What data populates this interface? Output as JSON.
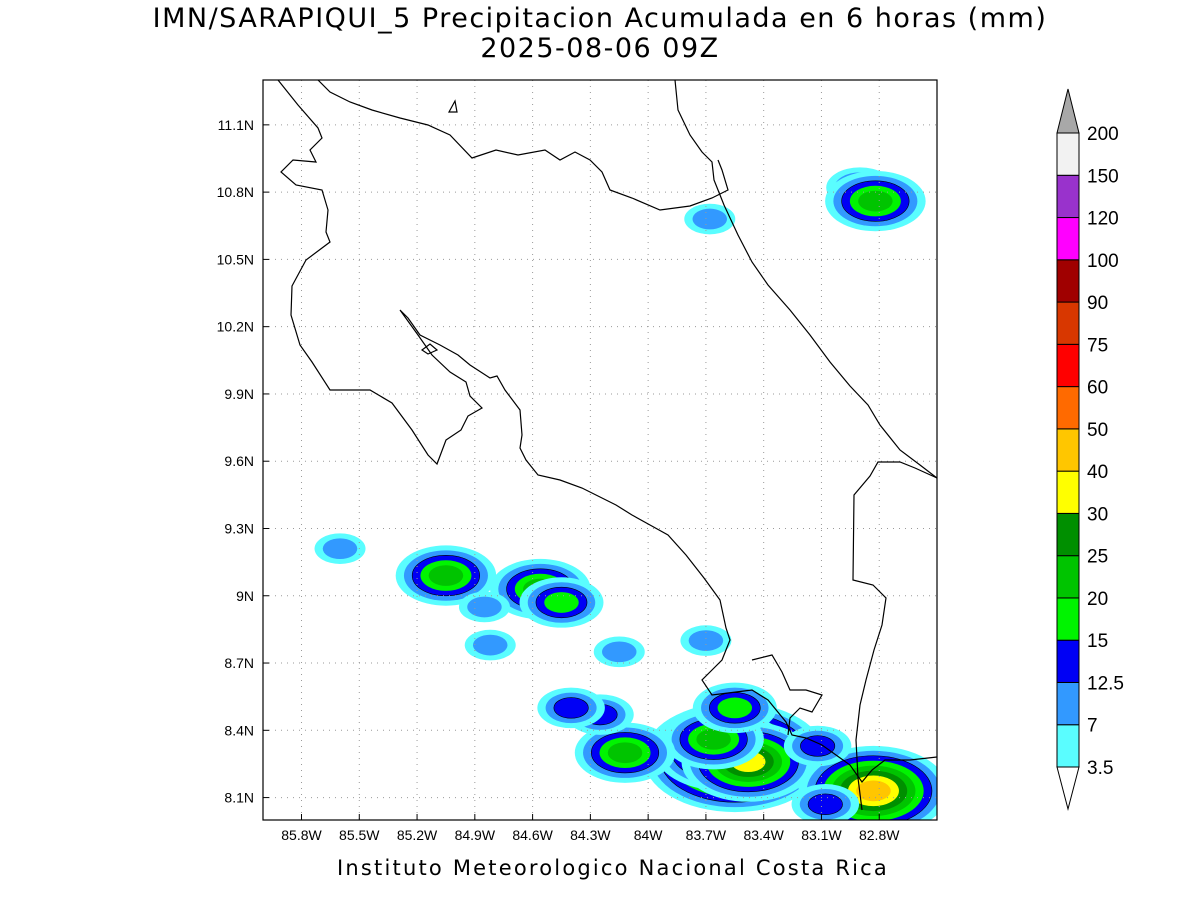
{
  "header": {
    "title_line1": "IMN/SARAPIQUI_5 Precipitacion Acumulada en 6 horas (mm)",
    "title_line2": "2025-08-06 09Z"
  },
  "footer": {
    "credit": "Instituto Meteorologico Nacional Costa Rica"
  },
  "map": {
    "lon_range": [
      -86.0,
      -82.5
    ],
    "lat_range": [
      8.0,
      11.3
    ],
    "lon_ticks": [
      {
        "value": -85.8,
        "label": "85.8W"
      },
      {
        "value": -85.5,
        "label": "85.5W"
      },
      {
        "value": -85.2,
        "label": "85.2W"
      },
      {
        "value": -84.9,
        "label": "84.9W"
      },
      {
        "value": -84.6,
        "label": "84.6W"
      },
      {
        "value": -84.3,
        "label": "84.3W"
      },
      {
        "value": -84.0,
        "label": "84W"
      },
      {
        "value": -83.7,
        "label": "83.7W"
      },
      {
        "value": -83.4,
        "label": "83.4W"
      },
      {
        "value": -83.1,
        "label": "83.1W"
      },
      {
        "value": -82.8,
        "label": "82.8W"
      }
    ],
    "lat_ticks": [
      {
        "value": 8.1,
        "label": "8.1N"
      },
      {
        "value": 8.4,
        "label": "8.4N"
      },
      {
        "value": 8.7,
        "label": "8.7N"
      },
      {
        "value": 9.0,
        "label": "9N"
      },
      {
        "value": 9.3,
        "label": "9.3N"
      },
      {
        "value": 9.6,
        "label": "9.6N"
      },
      {
        "value": 9.9,
        "label": "9.9N"
      },
      {
        "value": 10.2,
        "label": "10.2N"
      },
      {
        "value": 10.5,
        "label": "10.5N"
      },
      {
        "value": 10.8,
        "label": "10.8N"
      },
      {
        "value": 11.1,
        "label": "11.1N"
      }
    ],
    "grid": "dotted",
    "precip_cells": [
      {
        "lon": -83.55,
        "lat": 8.28,
        "level": 60
      },
      {
        "lon": -83.62,
        "lat": 8.31,
        "level": 30
      },
      {
        "lon": -83.48,
        "lat": 8.26,
        "level": 30
      },
      {
        "lon": -83.66,
        "lat": 8.36,
        "level": 20
      },
      {
        "lon": -82.83,
        "lat": 8.13,
        "level": 40
      },
      {
        "lon": -84.56,
        "lat": 9.03,
        "level": 20
      },
      {
        "lon": -84.45,
        "lat": 8.97,
        "level": 15
      },
      {
        "lon": -84.12,
        "lat": 8.3,
        "level": 20
      },
      {
        "lon": -85.05,
        "lat": 9.09,
        "level": 20
      },
      {
        "lon": -84.25,
        "lat": 8.47,
        "level": 12.5
      },
      {
        "lon": -83.55,
        "lat": 8.5,
        "level": 15
      },
      {
        "lon": -82.9,
        "lat": 10.82,
        "level": 12.5
      },
      {
        "lon": -82.82,
        "lat": 10.76,
        "level": 20
      },
      {
        "lon": -83.08,
        "lat": 8.07,
        "level": 12.5
      },
      {
        "lon": -83.12,
        "lat": 8.33,
        "level": 12.5
      },
      {
        "lon": -84.4,
        "lat": 8.5,
        "level": 12.5
      },
      {
        "lon": -85.6,
        "lat": 9.21,
        "level": 7
      },
      {
        "lon": -84.82,
        "lat": 8.78,
        "level": 7
      },
      {
        "lon": -83.68,
        "lat": 10.68,
        "level": 7
      },
      {
        "lon": -84.15,
        "lat": 8.75,
        "level": 7
      },
      {
        "lon": -83.7,
        "lat": 8.8,
        "level": 7
      },
      {
        "lon": -84.85,
        "lat": 8.95,
        "level": 7
      }
    ]
  },
  "colorbar": {
    "levels": [
      {
        "label": "3.5",
        "color": "#ffffff"
      },
      {
        "label": "7",
        "color": "#5afdff"
      },
      {
        "label": "12.5",
        "color": "#3299ff"
      },
      {
        "label": "15",
        "color": "#0000f5"
      },
      {
        "label": "20",
        "color": "#00f400"
      },
      {
        "label": "25",
        "color": "#00c400"
      },
      {
        "label": "30",
        "color": "#008f00"
      },
      {
        "label": "40",
        "color": "#ffff00"
      },
      {
        "label": "50",
        "color": "#ffc600"
      },
      {
        "label": "60",
        "color": "#ff6a00"
      },
      {
        "label": "75",
        "color": "#ff0000"
      },
      {
        "label": "90",
        "color": "#d83700"
      },
      {
        "label": "100",
        "color": "#a00000"
      },
      {
        "label": "120",
        "color": "#ff00ff"
      },
      {
        "label": "150",
        "color": "#9932cc"
      },
      {
        "label": "200",
        "color": "#f2f2f2"
      }
    ],
    "over_color": "#a8a8a8",
    "under_color": "#ffffff"
  }
}
